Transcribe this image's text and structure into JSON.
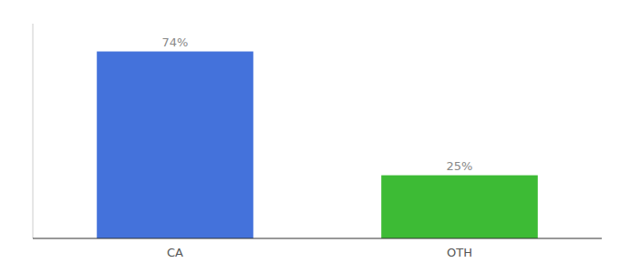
{
  "chart_data": {
    "type": "bar",
    "categories": [
      "CA",
      "OTH"
    ],
    "values": [
      74,
      25
    ],
    "value_labels": [
      "74%",
      "25%"
    ],
    "colors": [
      "#4472db",
      "#3dbb35"
    ],
    "ylim": [
      0,
      85
    ],
    "data_labels": true,
    "tick_labels": "x"
  }
}
